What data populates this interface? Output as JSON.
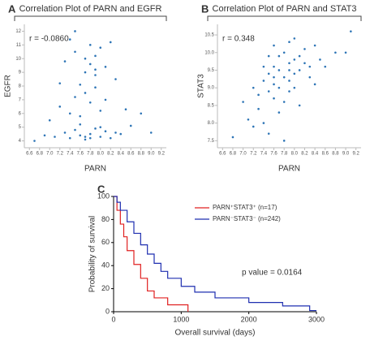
{
  "chart_data": [
    {
      "type": "scatter",
      "panel": "A",
      "title": "Correlation Plot of PARN and EGFR",
      "xlabel": "PARN",
      "ylabel": "EGFR",
      "annotation": "r = -0.0860",
      "color": "#2e75b6",
      "x": [
        7.1,
        7.3,
        7.4,
        7.5,
        7.6,
        7.7,
        7.8,
        7.9,
        8.0,
        8.1,
        8.2,
        8.4,
        7.2,
        7.5,
        7.6,
        7.7,
        7.8,
        7.9,
        8.0,
        8.3,
        7.0,
        7.4,
        7.6,
        7.7,
        7.8,
        7.9,
        8.1,
        8.5,
        6.9,
        7.3,
        7.5,
        7.6,
        7.8,
        7.9,
        8.0,
        8.2,
        8.6,
        6.7,
        7.2,
        7.4,
        7.7,
        7.8,
        8.0,
        8.1,
        8.3,
        9.0,
        7.5,
        7.9,
        7.7,
        8.8
      ],
      "values": [
        4.3,
        4.6,
        4.2,
        4.8,
        4.4,
        4.1,
        4.5,
        4.9,
        4.3,
        4.7,
        4.2,
        4.5,
        6.5,
        7.2,
        8.1,
        9.0,
        9.6,
        10.2,
        10.8,
        8.5,
        5.5,
        6.0,
        5.2,
        7.5,
        11.0,
        8.8,
        9.4,
        6.3,
        4.4,
        9.8,
        10.5,
        5.8,
        6.8,
        7.9,
        5.0,
        11.2,
        5.1,
        4.0,
        8.2,
        11.4,
        10.0,
        4.2,
        6.2,
        7.0,
        4.6,
        4.6,
        12.0,
        9.2,
        4.3,
        6.0
      ],
      "xlim": [
        6.5,
        9.3
      ],
      "ylim": [
        3.5,
        12.5
      ],
      "xticks": [
        6.6,
        6.8,
        {
          "value": 7,
          "label": "7.0"
        },
        7.2,
        7.4,
        7.6,
        7.8,
        {
          "value": 8,
          "label": "8.0"
        },
        8.2,
        8.4,
        8.6,
        8.8,
        {
          "value": 9,
          "label": "9.0"
        },
        9.2
      ],
      "yticks": [
        4,
        5,
        6,
        7,
        8,
        9,
        10,
        11,
        12
      ]
    },
    {
      "type": "scatter",
      "panel": "B",
      "title": "Correlation Plot of PARN and STAT3",
      "xlabel": "PARN",
      "ylabel": "STAT3",
      "annotation": "r = 0.348",
      "color": "#2e75b6",
      "x": [
        7.2,
        7.3,
        7.4,
        7.5,
        7.5,
        7.6,
        7.6,
        7.7,
        7.7,
        7.8,
        7.8,
        7.9,
        7.9,
        8.0,
        8.0,
        8.1,
        8.2,
        8.3,
        8.4,
        8.5,
        7.3,
        7.4,
        7.5,
        7.6,
        7.7,
        7.8,
        7.9,
        8.0,
        8.1,
        8.2,
        7.0,
        7.1,
        7.4,
        7.6,
        7.7,
        7.9,
        8.0,
        8.3,
        8.6,
        8.8,
        6.8,
        7.2,
        7.5,
        7.8,
        8.1,
        8.4,
        9.0,
        9.1,
        7.6,
        7.9
      ],
      "values": [
        9.0,
        8.8,
        9.2,
        9.4,
        8.9,
        9.6,
        9.1,
        9.5,
        9.9,
        9.3,
        10.0,
        9.7,
        9.2,
        9.8,
        9.4,
        9.9,
        10.1,
        9.6,
        10.2,
        9.8,
        8.4,
        9.6,
        9.9,
        8.7,
        9.0,
        8.6,
        10.3,
        9.0,
        9.5,
        9.7,
        8.6,
        8.1,
        8.0,
        10.2,
        8.3,
        8.9,
        10.4,
        9.3,
        9.6,
        10.0,
        7.6,
        7.9,
        7.7,
        7.5,
        8.5,
        9.1,
        10.0,
        10.6,
        9.3,
        9.5
      ],
      "xlim": [
        6.5,
        9.3
      ],
      "ylim": [
        7.3,
        10.8
      ],
      "xticks": [
        6.6,
        6.8,
        {
          "value": 7,
          "label": "7.0"
        },
        7.2,
        7.4,
        7.6,
        7.8,
        {
          "value": 8,
          "label": "8.0"
        },
        8.2,
        8.4,
        8.6,
        8.8,
        {
          "value": 9,
          "label": "9.0"
        },
        9.2
      ],
      "yticks": [
        7.5,
        {
          "value": 8,
          "label": "8.0"
        },
        8.5,
        {
          "value": 9,
          "label": "9.0"
        },
        9.5,
        {
          "value": 10,
          "label": "10.0"
        },
        10.5
      ]
    },
    {
      "type": "line",
      "panel": "C",
      "step": true,
      "xlabel": "Overall survival (days)",
      "ylabel": "Probability of survival",
      "annotation": "p value = 0.0164",
      "series": [
        {
          "name": "PARN⁺STAT3⁺ (n=17)",
          "color": "#e02020",
          "x": [
            0,
            50,
            100,
            150,
            200,
            300,
            400,
            500,
            600,
            800,
            1100
          ],
          "values": [
            100,
            88,
            76,
            65,
            53,
            41,
            29,
            18,
            12,
            6,
            0
          ]
        },
        {
          "name": "PARN⁻STAT3⁻ (n=242)",
          "color": "#1f2fb0",
          "x": [
            0,
            50,
            100,
            200,
            300,
            400,
            500,
            600,
            700,
            800,
            1000,
            1200,
            1500,
            2000,
            2500,
            2900,
            3000
          ],
          "values": [
            100,
            95,
            88,
            78,
            68,
            58,
            50,
            42,
            35,
            29,
            22,
            17,
            12,
            8,
            5,
            1,
            1
          ]
        }
      ],
      "xlim": [
        0,
        3000
      ],
      "ylim": [
        0,
        100
      ],
      "xticks": [
        0,
        1000,
        2000,
        3000
      ],
      "yticks": [
        0,
        20,
        40,
        60,
        80,
        100
      ]
    }
  ]
}
